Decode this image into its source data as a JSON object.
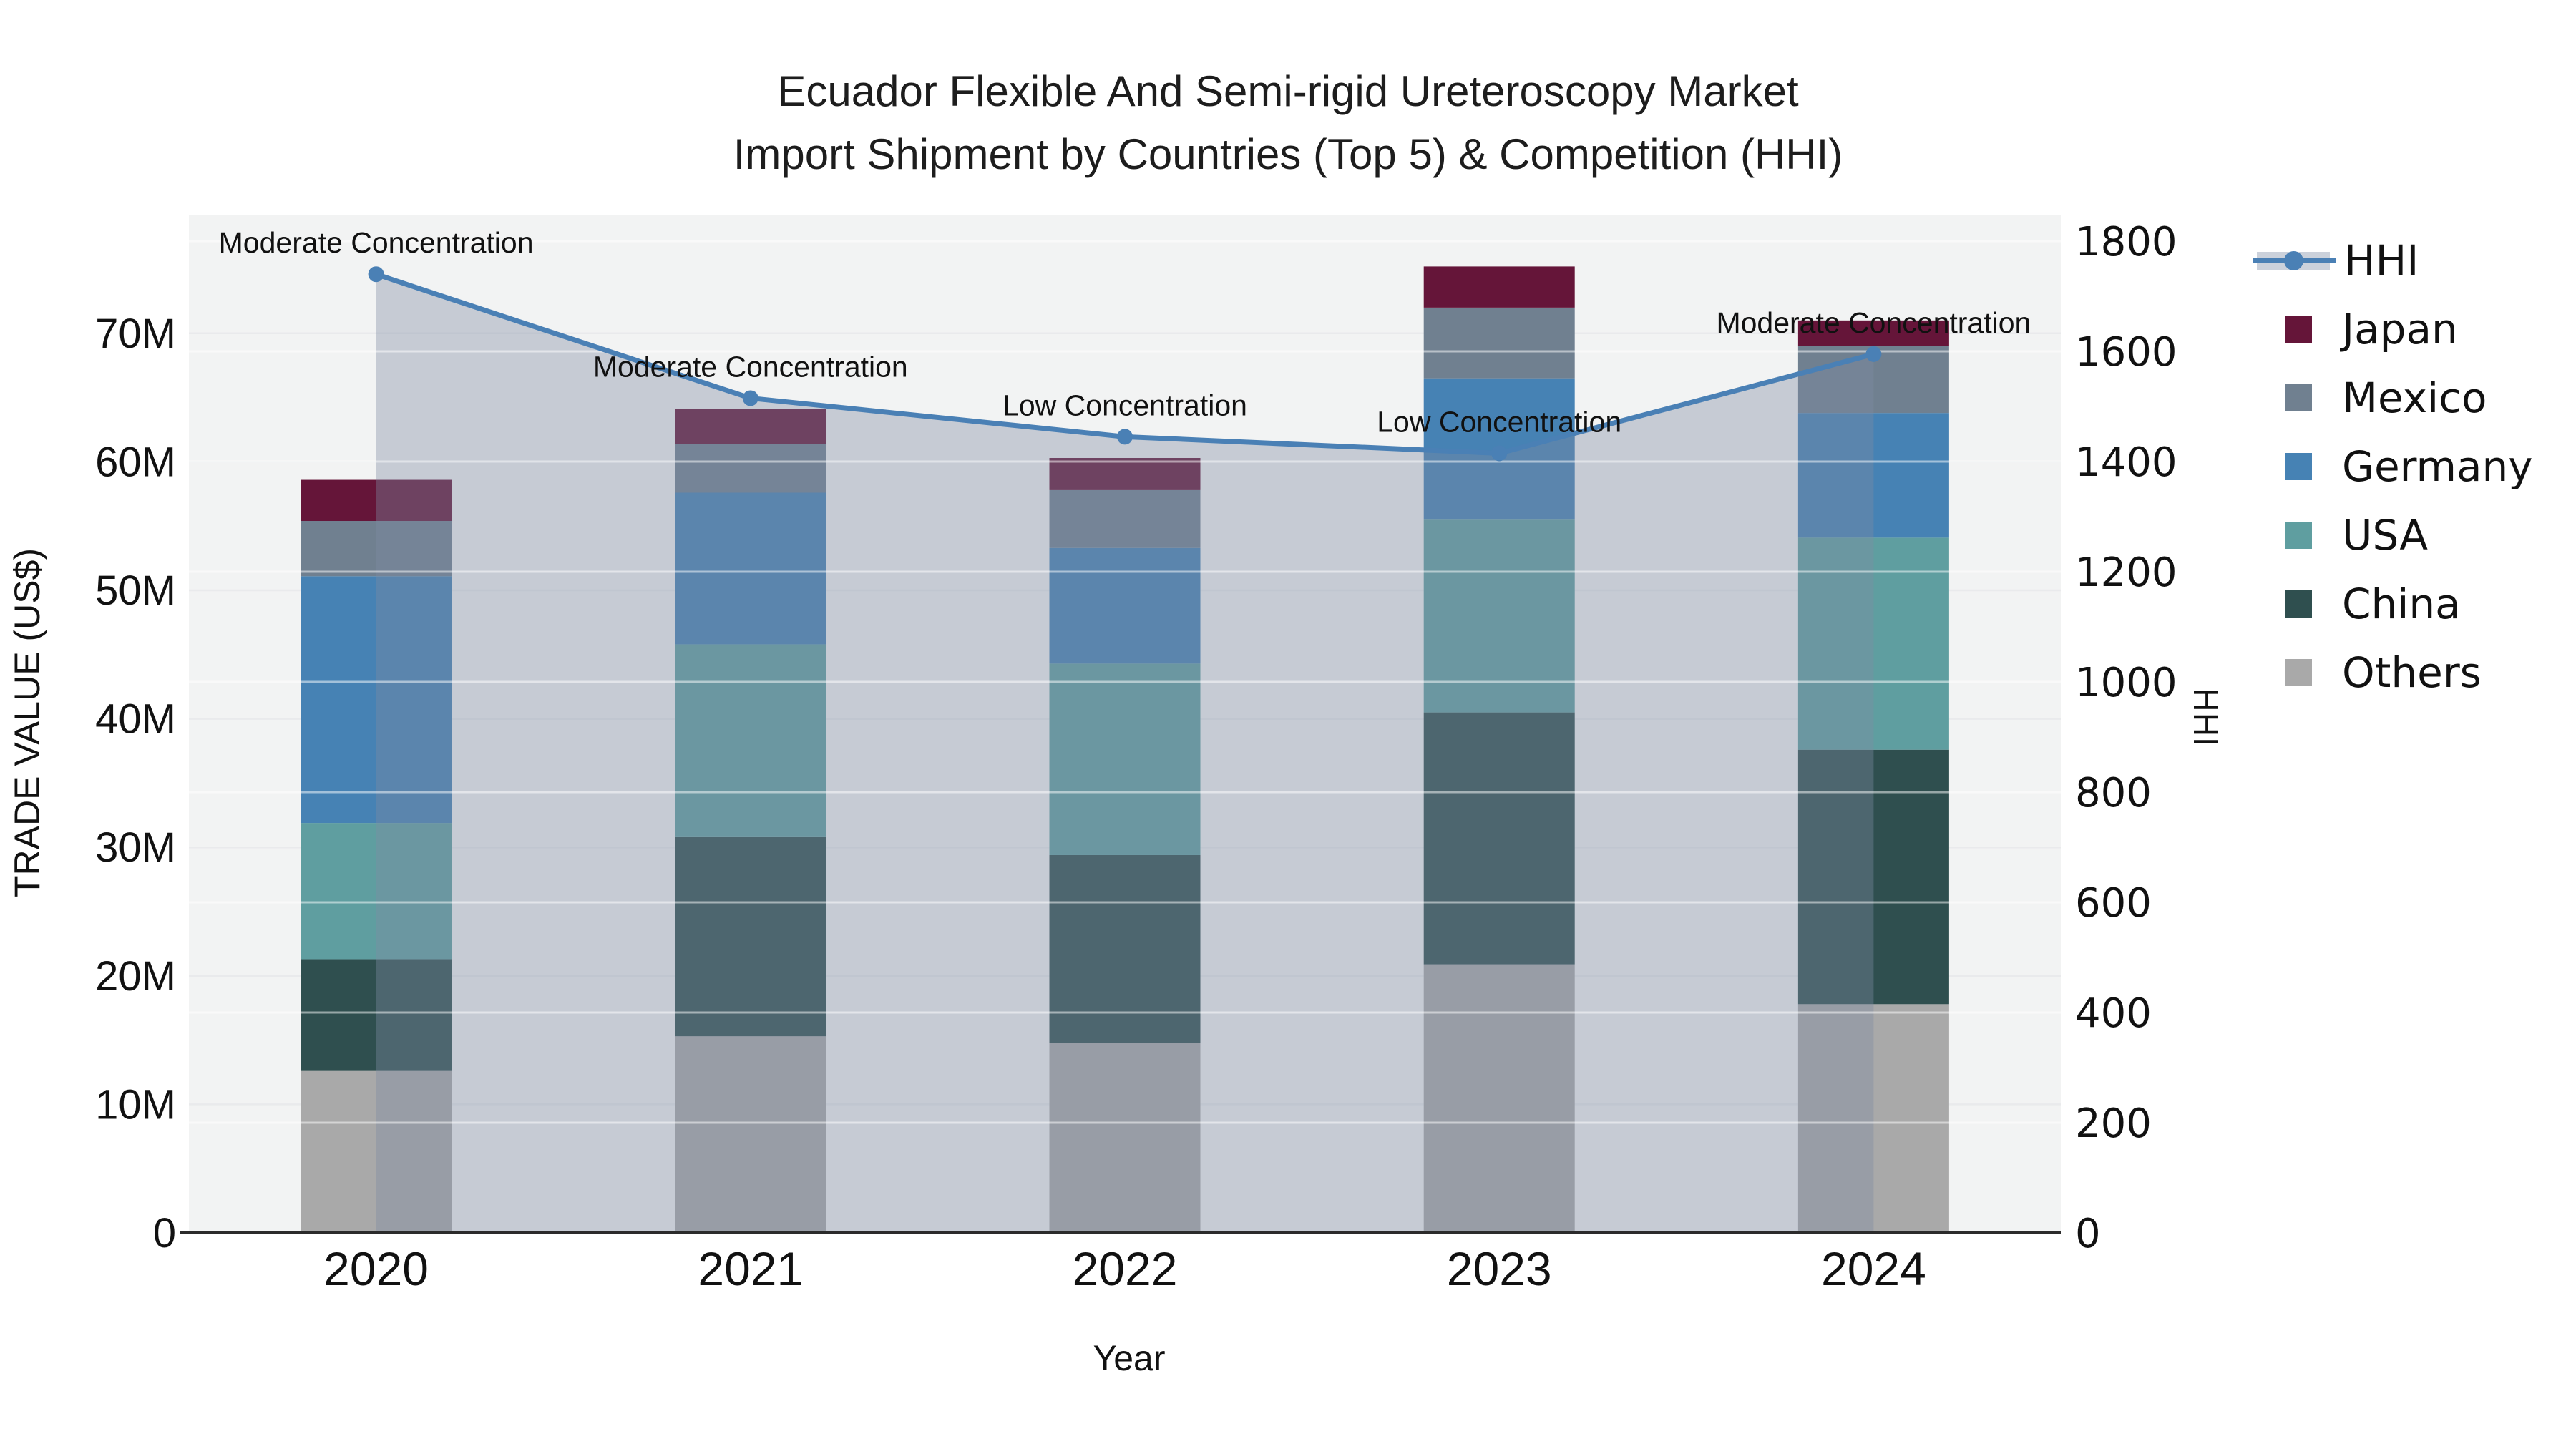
{
  "title": {
    "line1": "Ecuador Flexible And Semi-rigid Ureteroscopy Market",
    "line2": "Import Shipment by Countries (Top 5) & Competition (HHI)"
  },
  "colors": {
    "hhi_line": "#4A80B5",
    "hhi_area_fill": "rgba(126,139,162,0.38)",
    "japan": "#651539",
    "mexico": "#708090",
    "germany": "#4682B4",
    "usa": "#5F9EA0",
    "china": "#2F4F4F",
    "others": "#A9A9A9",
    "plot_background": "#F2F3F3",
    "grid_left": "#E9EAEC",
    "grid_right": "rgba(255,255,255,0.5)",
    "axis_line": "#2B2B2B",
    "legend_band": "#CBD1DB",
    "text": "#111111"
  },
  "legend": {
    "items": [
      {
        "label": "HHI",
        "type": "line",
        "color": "#4A80B5"
      },
      {
        "label": "Japan",
        "type": "box",
        "color": "#651539"
      },
      {
        "label": "Mexico",
        "type": "box",
        "color": "#708090"
      },
      {
        "label": "Germany",
        "type": "box",
        "color": "#4682B4"
      },
      {
        "label": "USA",
        "type": "box",
        "color": "#5F9EA0"
      },
      {
        "label": "China",
        "type": "box",
        "color": "#2F4F4F"
      },
      {
        "label": "Others",
        "type": "box",
        "color": "#A9A9A9"
      }
    ]
  },
  "chart_data": {
    "type": "bar",
    "subtype": "stacked-bars-with-dual-axis-line",
    "categories": [
      "2020",
      "2021",
      "2022",
      "2023",
      "2024"
    ],
    "x": {
      "title": "Year"
    },
    "y_left": {
      "title": "TRADE VALUE (US$)",
      "unit": "million US$",
      "tick_labels": [
        "0",
        "10M",
        "20M",
        "30M",
        "40M",
        "50M",
        "60M",
        "70M"
      ],
      "tick_values": [
        0,
        10,
        20,
        30,
        40,
        50,
        60,
        70
      ],
      "range": [
        0,
        79.2
      ]
    },
    "y_right": {
      "title": "HHI",
      "tick_labels": [
        "0",
        "200",
        "400",
        "600",
        "800",
        "1000",
        "1200",
        "1400",
        "1600",
        "1800"
      ],
      "tick_values": [
        0,
        200,
        400,
        600,
        800,
        1000,
        1200,
        1400,
        1600,
        1800
      ],
      "range": [
        0,
        1848
      ]
    },
    "series": [
      {
        "name": "Others",
        "color": "#A9A9A9",
        "values": [
          12.6,
          15.3,
          14.8,
          20.9,
          17.8
        ]
      },
      {
        "name": "China",
        "color": "#2F4F4F",
        "values": [
          8.7,
          15.5,
          14.6,
          19.6,
          19.8
        ]
      },
      {
        "name": "USA",
        "color": "#5F9EA0",
        "values": [
          10.6,
          15.0,
          14.9,
          15.0,
          16.5
        ]
      },
      {
        "name": "Germany",
        "color": "#4682B4",
        "values": [
          19.2,
          11.8,
          9.0,
          11.0,
          9.7
        ]
      },
      {
        "name": "Mexico",
        "color": "#708090",
        "values": [
          4.3,
          3.8,
          4.5,
          5.5,
          5.2
        ]
      },
      {
        "name": "Japan",
        "color": "#651539",
        "values": [
          3.2,
          2.7,
          2.5,
          3.2,
          2.0
        ]
      }
    ],
    "stack_totals": [
      58.6,
      64.1,
      60.3,
      75.2,
      71.0
    ],
    "line_series": {
      "name": "HHI",
      "axis": "right",
      "color": "#4A80B5",
      "values": [
        1740,
        1515,
        1445,
        1415,
        1595
      ],
      "area_fill": "rgba(126,139,162,0.38)"
    },
    "annotations": [
      {
        "category": "2020",
        "text": "Moderate Concentration"
      },
      {
        "category": "2021",
        "text": "Moderate Concentration"
      },
      {
        "category": "2022",
        "text": "Low Concentration"
      },
      {
        "category": "2023",
        "text": "Low Concentration"
      },
      {
        "category": "2024",
        "text": "Moderate Concentration"
      }
    ],
    "legend_position": "right",
    "grid": true
  }
}
